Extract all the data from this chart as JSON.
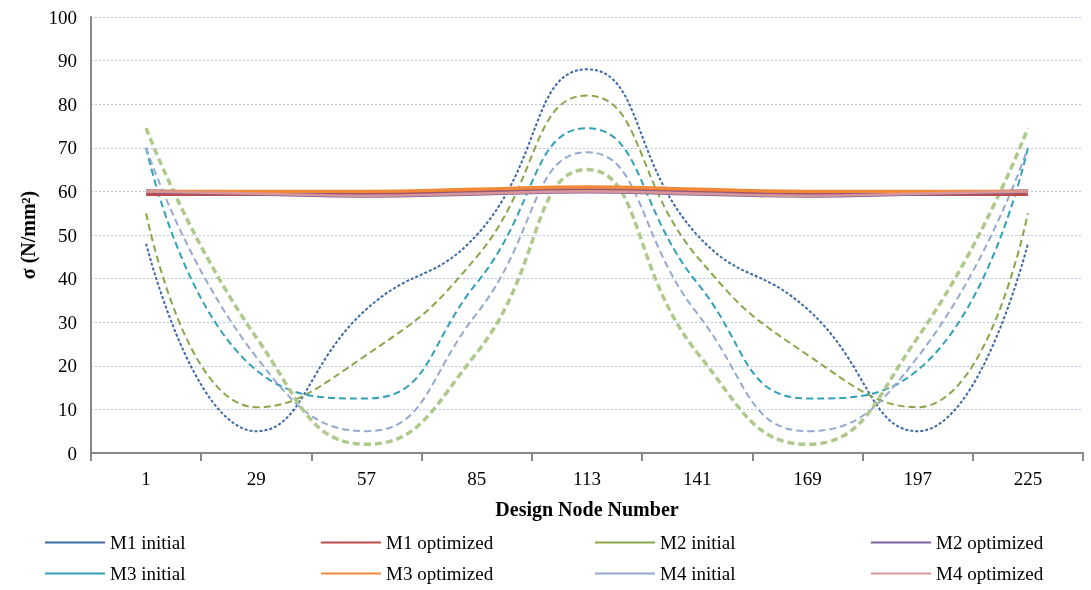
{
  "chart_data": {
    "type": "line",
    "xlabel": "Design Node Number",
    "ylabel": "σ (N/mm²)",
    "categories": [
      "1",
      "29",
      "57",
      "85",
      "113",
      "141",
      "169",
      "197",
      "225"
    ],
    "ylim": [
      0,
      100
    ],
    "yticks": [
      0,
      10,
      20,
      30,
      40,
      50,
      60,
      70,
      80,
      90,
      100
    ],
    "grid": "y",
    "legend": "bottom",
    "marker": "none",
    "series": [
      {
        "name": "M1 initial",
        "color": "#3d6aa5",
        "line_style": "dotted",
        "values": [
          48,
          5,
          33,
          50,
          88,
          50,
          33,
          5,
          48
        ]
      },
      {
        "name": "M1 optimized",
        "color": "#be4b48",
        "line_style": "solid",
        "values": [
          59.5,
          59.5,
          59.5,
          60,
          60.5,
          60,
          59.5,
          59.5,
          59.5
        ]
      },
      {
        "name": "M2 initial",
        "color": "#8aa64a",
        "line_style": "dashed",
        "values": [
          55,
          10.5,
          22.5,
          45,
          82,
          45,
          22.5,
          10.5,
          55
        ]
      },
      {
        "name": "M2 optimized",
        "color": "#7d5fa0",
        "line_style": "solid",
        "values": [
          60,
          59.5,
          59,
          59.5,
          60,
          59.5,
          59,
          59.5,
          60
        ]
      },
      {
        "name": "M3 initial",
        "color": "#31a0b8",
        "line_style": "dashed",
        "values": [
          70,
          19,
          12.5,
          39,
          74.5,
          39,
          12.5,
          19,
          70
        ]
      },
      {
        "name": "M3 optimized",
        "color": "#f08a3a",
        "line_style": "solid",
        "values": [
          60,
          60,
          60,
          60.5,
          61,
          60.5,
          60,
          60,
          60
        ]
      },
      {
        "name": "M4 initial",
        "color": "#95a9d0",
        "line_style": "dashed",
        "values": [
          70,
          22,
          5,
          32,
          69,
          32,
          5,
          22,
          70
        ]
      },
      {
        "name": "M4 optimized",
        "color": "#d99694",
        "line_style": "solid",
        "values": [
          60,
          59.5,
          59,
          59.5,
          60,
          59.5,
          59,
          59.5,
          60
        ]
      },
      {
        "color": "#afc98d",
        "line_style": "dashed",
        "values": [
          74.5,
          26.5,
          2,
          23,
          65,
          23,
          2,
          26.5,
          74.5
        ]
      }
    ]
  }
}
